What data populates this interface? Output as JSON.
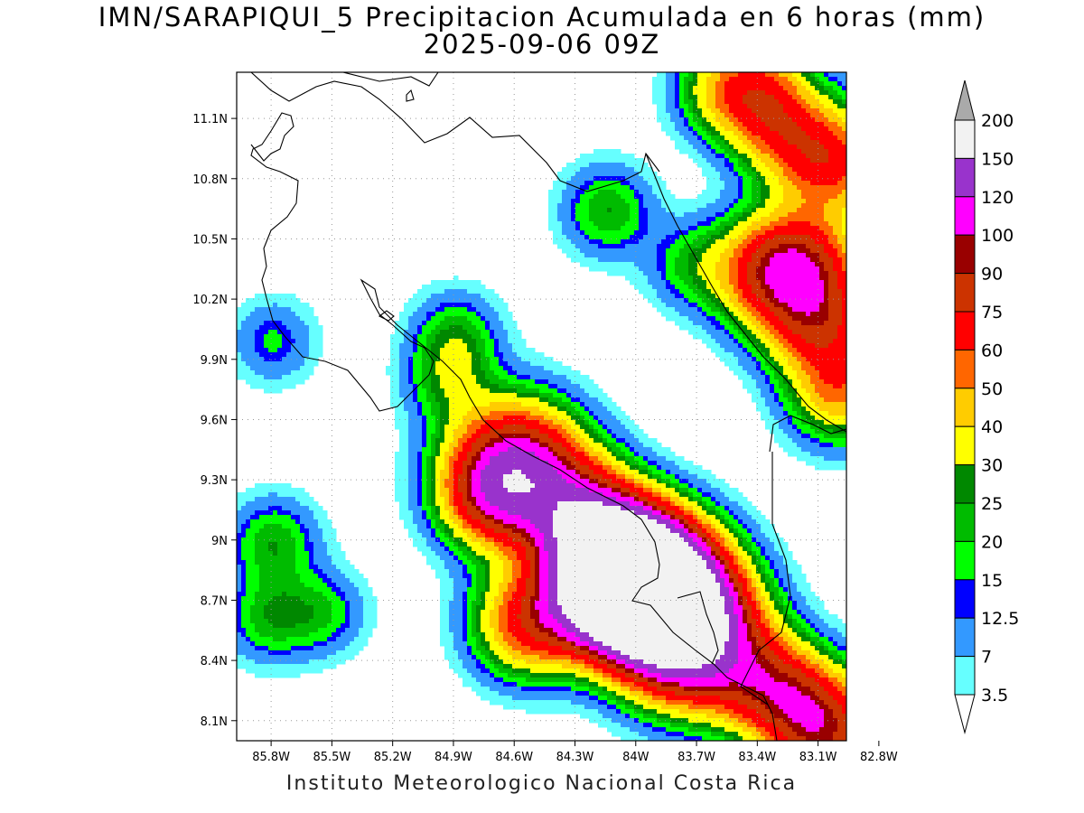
{
  "header": {
    "title_line1": "IMN/SARAPIQUI_5 Precipitacion Acumulada en 6 horas (mm)",
    "title_line2": "2025-09-06 09Z"
  },
  "footer": {
    "credit": "Instituto Meteorologico Nacional Costa Rica"
  },
  "map": {
    "lon_range": [
      -85.97,
      -82.96
    ],
    "lat_range": [
      8.0,
      11.33
    ],
    "lon_ticks": [
      {
        "value": -85.8,
        "label": "85.8W"
      },
      {
        "value": -85.5,
        "label": "85.5W"
      },
      {
        "value": -85.2,
        "label": "85.2W"
      },
      {
        "value": -84.9,
        "label": "84.9W"
      },
      {
        "value": -84.6,
        "label": "84.6W"
      },
      {
        "value": -84.3,
        "label": "84.3W"
      },
      {
        "value": -84.0,
        "label": "84W"
      },
      {
        "value": -83.7,
        "label": "83.7W"
      },
      {
        "value": -83.4,
        "label": "83.4W"
      },
      {
        "value": -83.1,
        "label": "83.1W"
      },
      {
        "value": -82.8,
        "label": "82.8W"
      }
    ],
    "lat_ticks": [
      {
        "value": 11.1,
        "label": "11.1N"
      },
      {
        "value": 10.8,
        "label": "10.8N"
      },
      {
        "value": 10.5,
        "label": "10.5N"
      },
      {
        "value": 10.2,
        "label": "10.2N"
      },
      {
        "value": 9.9,
        "label": "9.9N"
      },
      {
        "value": 9.6,
        "label": "9.6N"
      },
      {
        "value": 9.3,
        "label": "9.3N"
      },
      {
        "value": 9.0,
        "label": "9N"
      },
      {
        "value": 8.7,
        "label": "8.7N"
      },
      {
        "value": 8.4,
        "label": "8.4N"
      },
      {
        "value": 8.1,
        "label": "8.1N"
      }
    ],
    "grid": "dotted",
    "blobs": [
      {
        "lon": -84.6,
        "lat": 9.35,
        "peak": 125
      },
      {
        "lon": -84.75,
        "lat": 9.22,
        "peak": 35
      },
      {
        "lon": -84.28,
        "lat": 9.13,
        "peak": 70
      },
      {
        "lon": -84.1,
        "lat": 8.93,
        "peak": 80
      },
      {
        "lon": -84.0,
        "lat": 8.82,
        "peak": 65
      },
      {
        "lon": -83.88,
        "lat": 8.75,
        "peak": 130
      },
      {
        "lon": -84.0,
        "lat": 8.75,
        "peak": 95
      },
      {
        "lon": -83.72,
        "lat": 8.52,
        "peak": 130
      },
      {
        "lon": -84.3,
        "lat": 8.68,
        "peak": 45
      },
      {
        "lon": -84.55,
        "lat": 8.6,
        "peak": 60
      },
      {
        "lon": -84.2,
        "lat": 8.95,
        "peak": 60
      },
      {
        "lon": -83.38,
        "lat": 8.3,
        "peak": 50
      },
      {
        "lon": -83.2,
        "lat": 8.2,
        "peak": 45
      },
      {
        "lon": -83.05,
        "lat": 8.03,
        "peak": 70
      },
      {
        "lon": -83.35,
        "lat": 10.35,
        "peak": 72
      },
      {
        "lon": -83.15,
        "lat": 10.4,
        "peak": 45
      },
      {
        "lon": -83.1,
        "lat": 10.1,
        "peak": 65
      },
      {
        "lon": -83.0,
        "lat": 9.75,
        "peak": 48
      },
      {
        "lon": -83.05,
        "lat": 10.9,
        "peak": 65
      },
      {
        "lon": -83.3,
        "lat": 11.05,
        "peak": 35
      },
      {
        "lon": -83.4,
        "lat": 11.25,
        "peak": 48
      },
      {
        "lon": -83.6,
        "lat": 11.25,
        "peak": 28
      },
      {
        "lon": -84.15,
        "lat": 10.65,
        "peak": 25
      },
      {
        "lon": -83.75,
        "lat": 10.38,
        "peak": 18
      },
      {
        "lon": -84.9,
        "lat": 10.03,
        "peak": 22
      },
      {
        "lon": -84.93,
        "lat": 9.8,
        "peak": 22
      },
      {
        "lon": -85.8,
        "lat": 9.0,
        "peak": 24
      },
      {
        "lon": -85.82,
        "lat": 8.62,
        "peak": 22
      },
      {
        "lon": -85.55,
        "lat": 8.65,
        "peak": 18
      },
      {
        "lon": -85.8,
        "lat": 10.0,
        "peak": 16
      },
      {
        "lon": -84.0,
        "lat": 8.74,
        "peak": 95
      }
    ]
  },
  "legend": {
    "levels": [
      "200",
      "150",
      "120",
      "100",
      "90",
      "75",
      "60",
      "50",
      "40",
      "30",
      "25",
      "20",
      "15",
      "12.5",
      "7",
      "3.5"
    ],
    "colors": [
      "#f2f2f2",
      "#9933cc",
      "#ff00ff",
      "#990000",
      "#cc3300",
      "#ff0000",
      "#ff6600",
      "#ffcc00",
      "#ffff00",
      "#008800",
      "#00bb00",
      "#00ff00",
      "#0000ff",
      "#3399ff",
      "#66ffff"
    ],
    "top_arrow_color": "#aaaaaa",
    "bottom_arrow_color": "#ffffff"
  }
}
